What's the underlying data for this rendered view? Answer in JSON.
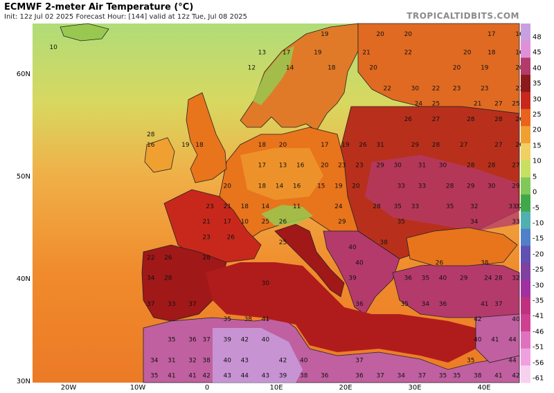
{
  "header": {
    "title": "ECMWF 2-meter Air Temperature (°C)",
    "subtitle": "Init: 12z Jul 02 2025   Forecast Hour: [144]   valid at 12z Tue, Jul 08 2025",
    "brand": "TROPICALTIDBITS.COM"
  },
  "axes": {
    "lat_labels": [
      "60N",
      "50N",
      "40N",
      "30N"
    ],
    "lon_labels": [
      "20W",
      "10W",
      "0",
      "10E",
      "20E",
      "30E",
      "40E"
    ]
  },
  "colorbar": {
    "labels": [
      "48",
      "45",
      "40",
      "35",
      "30",
      "25",
      "20",
      "15",
      "10",
      "5",
      "0",
      "-5",
      "-10",
      "-15",
      "-20",
      "-25",
      "-30",
      "-35",
      "-41",
      "-46",
      "-51",
      "-56",
      "-61"
    ],
    "colors": [
      "#c8a0e0",
      "#e090d8",
      "#b43a6c",
      "#8c1a1a",
      "#c8281c",
      "#e8641c",
      "#f0a030",
      "#f0d060",
      "#c8e060",
      "#80c858",
      "#40a848",
      "#50b0b0",
      "#5080c8",
      "#6050b0",
      "#8040a0",
      "#a030a0",
      "#c03080",
      "#d04090",
      "#e070c0",
      "#f0a0e0",
      "#f8d0f0"
    ]
  },
  "map": {
    "region": "Europe",
    "colors": {
      "ocean_cool": "#c8e070",
      "ocean_warm": "#f0b050",
      "land_hot": "#a01818",
      "land_veryhot": "#b43a6c",
      "land_extreme": "#c8a0e0",
      "land_mild": "#e8741c",
      "land_cool": "#98c850"
    },
    "labels": [
      {
        "t": "10",
        "lon": -22,
        "lat": 62.5
      },
      {
        "t": "19",
        "lon": 17,
        "lat": 63.8
      },
      {
        "t": "20",
        "lon": 25,
        "lat": 63.8
      },
      {
        "t": "20",
        "lon": 29,
        "lat": 63.8
      },
      {
        "t": "17",
        "lon": 41,
        "lat": 63.8
      },
      {
        "t": "16",
        "lon": 45,
        "lat": 63.8
      },
      {
        "t": "13",
        "lon": 8,
        "lat": 62
      },
      {
        "t": "17",
        "lon": 11.5,
        "lat": 62
      },
      {
        "t": "19",
        "lon": 16,
        "lat": 62
      },
      {
        "t": "21",
        "lon": 23,
        "lat": 62
      },
      {
        "t": "22",
        "lon": 29,
        "lat": 62
      },
      {
        "t": "20",
        "lon": 37.5,
        "lat": 62
      },
      {
        "t": "18",
        "lon": 41,
        "lat": 62
      },
      {
        "t": "16",
        "lon": 45,
        "lat": 62
      },
      {
        "t": "12",
        "lon": 6.5,
        "lat": 60.5
      },
      {
        "t": "14",
        "lon": 12,
        "lat": 60.5
      },
      {
        "t": "18",
        "lon": 18,
        "lat": 60.5
      },
      {
        "t": "20",
        "lon": 24,
        "lat": 60.5
      },
      {
        "t": "20",
        "lon": 36,
        "lat": 60.5
      },
      {
        "t": "19",
        "lon": 40,
        "lat": 60.5
      },
      {
        "t": "20",
        "lon": 45,
        "lat": 60.5
      },
      {
        "t": "22",
        "lon": 26,
        "lat": 58.5
      },
      {
        "t": "30",
        "lon": 30,
        "lat": 58.5
      },
      {
        "t": "22",
        "lon": 33,
        "lat": 58.5
      },
      {
        "t": "23",
        "lon": 36,
        "lat": 58.5
      },
      {
        "t": "23",
        "lon": 40,
        "lat": 58.5
      },
      {
        "t": "21",
        "lon": 45,
        "lat": 58.5
      },
      {
        "t": "24",
        "lon": 30.5,
        "lat": 57
      },
      {
        "t": "25",
        "lon": 33,
        "lat": 57
      },
      {
        "t": "21",
        "lon": 39,
        "lat": 57
      },
      {
        "t": "27",
        "lon": 42,
        "lat": 57
      },
      {
        "t": "25",
        "lon": 44.5,
        "lat": 57
      },
      {
        "t": "26",
        "lon": 29,
        "lat": 55.5
      },
      {
        "t": "27",
        "lon": 33,
        "lat": 55.5
      },
      {
        "t": "28",
        "lon": 38,
        "lat": 55.5
      },
      {
        "t": "28",
        "lon": 42,
        "lat": 55.5
      },
      {
        "t": "26",
        "lon": 45,
        "lat": 55.5
      },
      {
        "t": "28",
        "lon": -8,
        "lat": 54
      },
      {
        "t": "19",
        "lon": -3,
        "lat": 53
      },
      {
        "t": "18",
        "lon": 8,
        "lat": 53
      },
      {
        "t": "20",
        "lon": 11,
        "lat": 53
      },
      {
        "t": "17",
        "lon": 17,
        "lat": 53
      },
      {
        "t": "19",
        "lon": 20,
        "lat": 53
      },
      {
        "t": "26",
        "lon": 22.5,
        "lat": 53
      },
      {
        "t": "31",
        "lon": 25,
        "lat": 53
      },
      {
        "t": "29",
        "lon": 30,
        "lat": 53
      },
      {
        "t": "28",
        "lon": 33,
        "lat": 53
      },
      {
        "t": "27",
        "lon": 37,
        "lat": 53
      },
      {
        "t": "27",
        "lon": 42,
        "lat": 53
      },
      {
        "t": "26",
        "lon": 45,
        "lat": 53
      },
      {
        "t": "16",
        "lon": -8,
        "lat": 53
      },
      {
        "t": "18",
        "lon": -1,
        "lat": 53
      },
      {
        "t": "17",
        "lon": 8,
        "lat": 51
      },
      {
        "t": "13",
        "lon": 11,
        "lat": 51
      },
      {
        "t": "16",
        "lon": 13.5,
        "lat": 51
      },
      {
        "t": "20",
        "lon": 17,
        "lat": 51
      },
      {
        "t": "23",
        "lon": 19.5,
        "lat": 51
      },
      {
        "t": "23",
        "lon": 22,
        "lat": 51
      },
      {
        "t": "29",
        "lon": 25,
        "lat": 51
      },
      {
        "t": "30",
        "lon": 27.5,
        "lat": 51
      },
      {
        "t": "31",
        "lon": 31,
        "lat": 51
      },
      {
        "t": "30",
        "lon": 34,
        "lat": 51
      },
      {
        "t": "28",
        "lon": 38,
        "lat": 51
      },
      {
        "t": "28",
        "lon": 41,
        "lat": 51
      },
      {
        "t": "27",
        "lon": 44.5,
        "lat": 51
      },
      {
        "t": "20",
        "lon": 3,
        "lat": 49
      },
      {
        "t": "18",
        "lon": 8,
        "lat": 49
      },
      {
        "t": "14",
        "lon": 10.5,
        "lat": 49
      },
      {
        "t": "16",
        "lon": 13,
        "lat": 49
      },
      {
        "t": "15",
        "lon": 16.5,
        "lat": 49
      },
      {
        "t": "19",
        "lon": 19,
        "lat": 49
      },
      {
        "t": "20",
        "lon": 21.5,
        "lat": 49
      },
      {
        "t": "33",
        "lon": 28,
        "lat": 49
      },
      {
        "t": "33",
        "lon": 31,
        "lat": 49
      },
      {
        "t": "28",
        "lon": 35,
        "lat": 49
      },
      {
        "t": "29",
        "lon": 38,
        "lat": 49
      },
      {
        "t": "30",
        "lon": 41,
        "lat": 49
      },
      {
        "t": "29",
        "lon": 44.5,
        "lat": 49
      },
      {
        "t": "23",
        "lon": 0.5,
        "lat": 47
      },
      {
        "t": "21",
        "lon": 3,
        "lat": 47
      },
      {
        "t": "18",
        "lon": 5.5,
        "lat": 47
      },
      {
        "t": "14",
        "lon": 8.5,
        "lat": 47
      },
      {
        "t": "11",
        "lon": 13,
        "lat": 47
      },
      {
        "t": "24",
        "lon": 19,
        "lat": 47
      },
      {
        "t": "28",
        "lon": 24.5,
        "lat": 47
      },
      {
        "t": "35",
        "lon": 27.5,
        "lat": 47
      },
      {
        "t": "33",
        "lon": 30,
        "lat": 47
      },
      {
        "t": "35",
        "lon": 35,
        "lat": 47
      },
      {
        "t": "32",
        "lon": 38.5,
        "lat": 47
      },
      {
        "t": "33",
        "lon": 44,
        "lat": 47
      },
      {
        "t": "32",
        "lon": 45,
        "lat": 47
      },
      {
        "t": "21",
        "lon": 0,
        "lat": 45.5
      },
      {
        "t": "17",
        "lon": 3,
        "lat": 45.5
      },
      {
        "t": "10",
        "lon": 5.5,
        "lat": 45.5
      },
      {
        "t": "25",
        "lon": 8.5,
        "lat": 45.5
      },
      {
        "t": "26",
        "lon": 11,
        "lat": 45.5
      },
      {
        "t": "29",
        "lon": 19.5,
        "lat": 45.5
      },
      {
        "t": "35",
        "lon": 28,
        "lat": 45.5
      },
      {
        "t": "34",
        "lon": 38.5,
        "lat": 45.5
      },
      {
        "t": "33",
        "lon": 44.5,
        "lat": 45.5
      },
      {
        "t": "23",
        "lon": 0,
        "lat": 44
      },
      {
        "t": "26",
        "lon": 3.5,
        "lat": 44
      },
      {
        "t": "25",
        "lon": 11,
        "lat": 43.5
      },
      {
        "t": "38",
        "lon": 25.5,
        "lat": 43.5
      },
      {
        "t": "40",
        "lon": 21,
        "lat": 43
      },
      {
        "t": "22",
        "lon": -8,
        "lat": 42
      },
      {
        "t": "26",
        "lon": -5.5,
        "lat": 42
      },
      {
        "t": "28",
        "lon": 0,
        "lat": 42
      },
      {
        "t": "40",
        "lon": 22,
        "lat": 41.5
      },
      {
        "t": "26",
        "lon": 33.5,
        "lat": 41.5
      },
      {
        "t": "38",
        "lon": 40,
        "lat": 41.5
      },
      {
        "t": "34",
        "lon": -8,
        "lat": 40
      },
      {
        "t": "28",
        "lon": -5.5,
        "lat": 40
      },
      {
        "t": "39",
        "lon": 21,
        "lat": 40
      },
      {
        "t": "36",
        "lon": 29,
        "lat": 40
      },
      {
        "t": "35",
        "lon": 31.5,
        "lat": 40
      },
      {
        "t": "40",
        "lon": 34,
        "lat": 40
      },
      {
        "t": "29",
        "lon": 37,
        "lat": 40
      },
      {
        "t": "24",
        "lon": 40.5,
        "lat": 40
      },
      {
        "t": "28",
        "lon": 42,
        "lat": 40
      },
      {
        "t": "32",
        "lon": 44.5,
        "lat": 40
      },
      {
        "t": "30",
        "lon": 8.5,
        "lat": 39.5
      },
      {
        "t": "37",
        "lon": -8,
        "lat": 37.5
      },
      {
        "t": "33",
        "lon": -5,
        "lat": 37.5
      },
      {
        "t": "37",
        "lon": -2,
        "lat": 37.5
      },
      {
        "t": "36",
        "lon": 22,
        "lat": 37.5
      },
      {
        "t": "35",
        "lon": 28.5,
        "lat": 37.5
      },
      {
        "t": "34",
        "lon": 31.5,
        "lat": 37.5
      },
      {
        "t": "36",
        "lon": 34,
        "lat": 37.5
      },
      {
        "t": "41",
        "lon": 40,
        "lat": 37.5
      },
      {
        "t": "37",
        "lon": 42,
        "lat": 37.5
      },
      {
        "t": "35",
        "lon": 3,
        "lat": 36
      },
      {
        "t": "38",
        "lon": 6,
        "lat": 36
      },
      {
        "t": "41",
        "lon": 8.5,
        "lat": 36
      },
      {
        "t": "42",
        "lon": 39,
        "lat": 36
      },
      {
        "t": "40",
        "lon": 44.5,
        "lat": 36
      },
      {
        "t": "35",
        "lon": -5,
        "lat": 34
      },
      {
        "t": "36",
        "lon": -2,
        "lat": 34
      },
      {
        "t": "37",
        "lon": 0,
        "lat": 34
      },
      {
        "t": "39",
        "lon": 3,
        "lat": 34
      },
      {
        "t": "42",
        "lon": 5.5,
        "lat": 34
      },
      {
        "t": "40",
        "lon": 8.5,
        "lat": 34
      },
      {
        "t": "40",
        "lon": 39,
        "lat": 34
      },
      {
        "t": "41",
        "lon": 41.5,
        "lat": 34
      },
      {
        "t": "44",
        "lon": 44,
        "lat": 34
      },
      {
        "t": "34",
        "lon": -7.5,
        "lat": 32
      },
      {
        "t": "31",
        "lon": -5,
        "lat": 32
      },
      {
        "t": "32",
        "lon": -2,
        "lat": 32
      },
      {
        "t": "38",
        "lon": 0,
        "lat": 32
      },
      {
        "t": "40",
        "lon": 3,
        "lat": 32
      },
      {
        "t": "43",
        "lon": 5.5,
        "lat": 32
      },
      {
        "t": "42",
        "lon": 11,
        "lat": 32
      },
      {
        "t": "40",
        "lon": 14,
        "lat": 32
      },
      {
        "t": "37",
        "lon": 22,
        "lat": 32
      },
      {
        "t": "35",
        "lon": 38,
        "lat": 32
      },
      {
        "t": "44",
        "lon": 44,
        "lat": 32
      },
      {
        "t": "35",
        "lon": -7.5,
        "lat": 30.5
      },
      {
        "t": "41",
        "lon": -5,
        "lat": 30.5
      },
      {
        "t": "41",
        "lon": -2,
        "lat": 30.5
      },
      {
        "t": "42",
        "lon": 0,
        "lat": 30.5
      },
      {
        "t": "43",
        "lon": 3,
        "lat": 30.5
      },
      {
        "t": "44",
        "lon": 5.5,
        "lat": 30.5
      },
      {
        "t": "43",
        "lon": 8.5,
        "lat": 30.5
      },
      {
        "t": "39",
        "lon": 11,
        "lat": 30.5
      },
      {
        "t": "38",
        "lon": 14,
        "lat": 30.5
      },
      {
        "t": "36",
        "lon": 17,
        "lat": 30.5
      },
      {
        "t": "36",
        "lon": 22,
        "lat": 30.5
      },
      {
        "t": "37",
        "lon": 25,
        "lat": 30.5
      },
      {
        "t": "34",
        "lon": 28,
        "lat": 30.5
      },
      {
        "t": "37",
        "lon": 31,
        "lat": 30.5
      },
      {
        "t": "35",
        "lon": 34,
        "lat": 30.5
      },
      {
        "t": "35",
        "lon": 36,
        "lat": 30.5
      },
      {
        "t": "38",
        "lon": 39,
        "lat": 30.5
      },
      {
        "t": "41",
        "lon": 42,
        "lat": 30.5
      },
      {
        "t": "42",
        "lon": 44.5,
        "lat": 30.5
      }
    ]
  }
}
